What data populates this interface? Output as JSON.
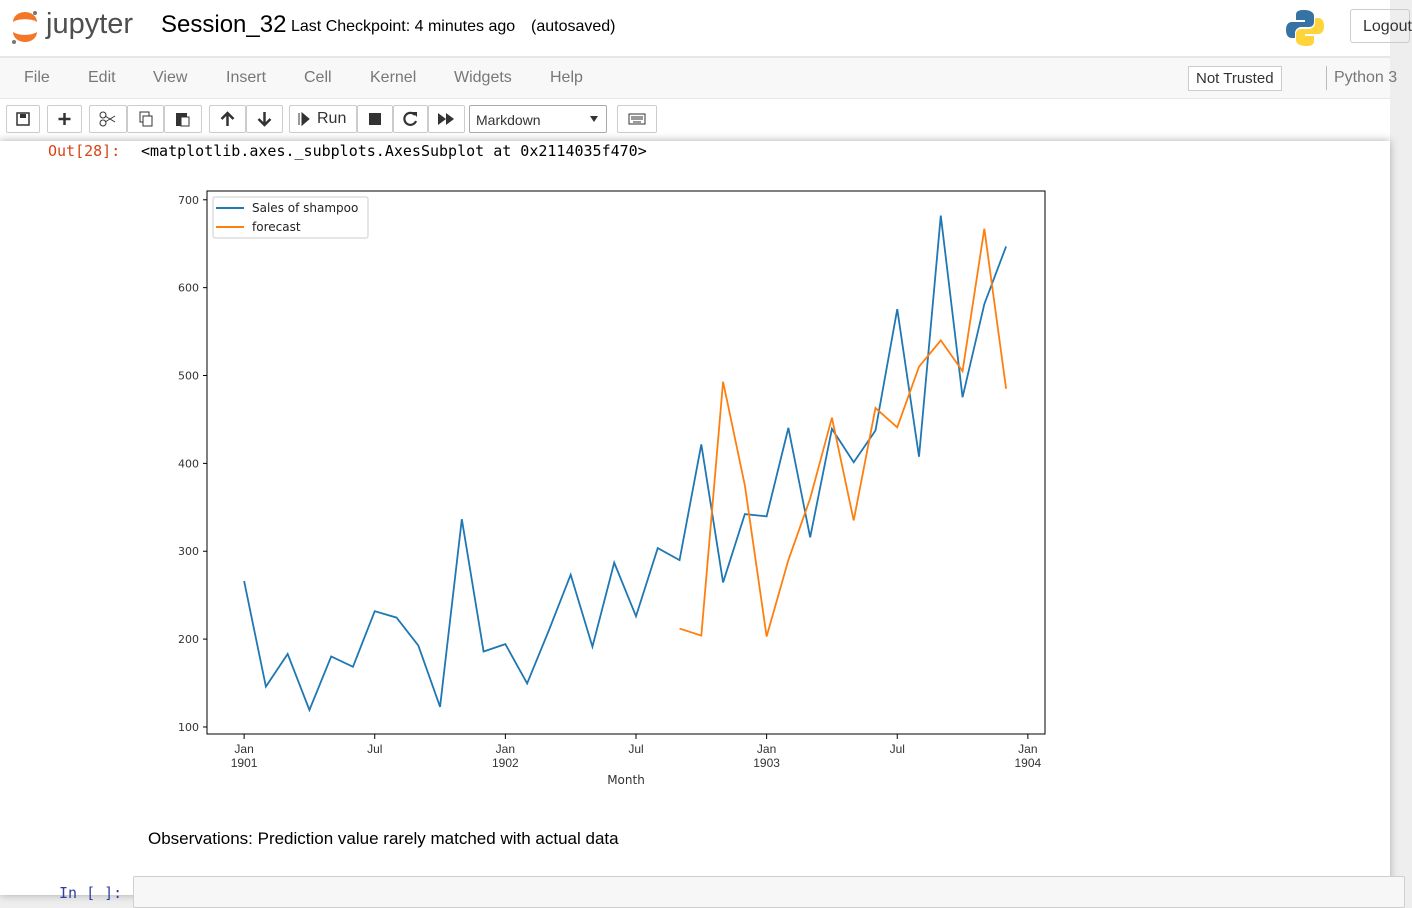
{
  "header": {
    "logo": "jupyter",
    "notebook_name": "Session_32",
    "checkpoint": "Last Checkpoint: 4 minutes ago",
    "autosave": "(autosaved)",
    "logout": "Logout"
  },
  "menu": {
    "items": [
      "File",
      "Edit",
      "View",
      "Insert",
      "Cell",
      "Kernel",
      "Widgets",
      "Help"
    ],
    "trusted": "Not Trusted",
    "kernel": "Python 3"
  },
  "toolbar": {
    "run": "Run",
    "cell_type": "Markdown"
  },
  "output": {
    "prompt": "Out[28]:",
    "text": "<matplotlib.axes._subplots.AxesSubplot at 0x2114035f470>"
  },
  "markdown": {
    "text": "Observations: Prediction value rarely matched with actual data"
  },
  "next_cell": {
    "prompt": "In [ ]:"
  },
  "chart_data": {
    "type": "line",
    "xlabel": "Month",
    "legend": "upper left",
    "x": [
      "1901-01",
      "1901-02",
      "1901-03",
      "1901-04",
      "1901-05",
      "1901-06",
      "1901-07",
      "1901-08",
      "1901-09",
      "1901-10",
      "1901-11",
      "1901-12",
      "1902-01",
      "1902-02",
      "1902-03",
      "1902-04",
      "1902-05",
      "1902-06",
      "1902-07",
      "1902-08",
      "1902-09",
      "1902-10",
      "1902-11",
      "1902-12",
      "1903-01",
      "1903-02",
      "1903-03",
      "1903-04",
      "1903-05",
      "1903-06",
      "1903-07",
      "1903-08",
      "1903-09",
      "1903-10",
      "1903-11",
      "1903-12"
    ],
    "series": [
      {
        "name": "Sales of shampoo",
        "color": "#1f77b4",
        "values": [
          266.0,
          145.9,
          183.1,
          119.3,
          180.3,
          168.5,
          231.8,
          224.5,
          192.8,
          122.9,
          336.5,
          185.9,
          194.3,
          149.5,
          210.1,
          273.3,
          191.4,
          287.0,
          226.0,
          303.6,
          289.9,
          421.6,
          264.5,
          342.3,
          339.7,
          440.4,
          315.9,
          439.3,
          401.3,
          437.4,
          575.5,
          407.6,
          682.0,
          475.3,
          581.3,
          646.9
        ]
      },
      {
        "name": "forecast",
        "color": "#ff7f0e",
        "values": [
          null,
          null,
          null,
          null,
          null,
          null,
          null,
          null,
          null,
          null,
          null,
          null,
          null,
          null,
          null,
          null,
          null,
          null,
          null,
          null,
          212,
          204,
          493,
          375,
          203,
          290,
          360,
          452,
          335,
          463,
          441,
          510,
          540,
          505,
          667,
          485
        ]
      }
    ],
    "xlim": [
      "1900-11-10",
      "1904-01-25"
    ],
    "ylim": [
      92,
      710
    ],
    "xticks": [
      {
        "value": "1901-01",
        "label": "Jan\n1901"
      },
      {
        "value": "1901-07",
        "label": "Jul"
      },
      {
        "value": "1902-01",
        "label": "Jan\n1902"
      },
      {
        "value": "1902-07",
        "label": "Jul"
      },
      {
        "value": "1903-01",
        "label": "Jan\n1903"
      },
      {
        "value": "1903-07",
        "label": "Jul"
      },
      {
        "value": "1904-01",
        "label": "Jan\n1904"
      }
    ],
    "yticks": [
      100,
      200,
      300,
      400,
      500,
      600,
      700
    ]
  }
}
